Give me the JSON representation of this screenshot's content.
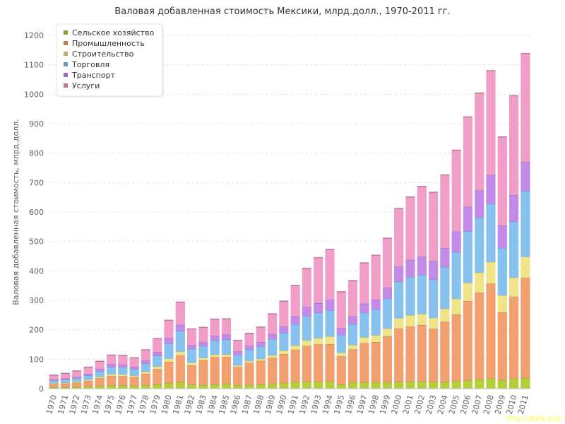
{
  "chart_data": {
    "type": "bar",
    "stacked": true,
    "title": "Валовая добавленная стоимость Мексики, млрд.долл., 1970-2011 гг.",
    "ylabel": "Валовая добавленная стоимость, млрд.долл.",
    "xlabel": "",
    "ylim": [
      0,
      1200
    ],
    "yticks": [
      0,
      100,
      200,
      300,
      400,
      500,
      600,
      700,
      800,
      900,
      1000,
      1100,
      1200
    ],
    "grid": true,
    "legend_position": "top-left",
    "categories": [
      "1970",
      "1971",
      "1972",
      "1973",
      "1974",
      "1975",
      "1976",
      "1977",
      "1978",
      "1979",
      "1980",
      "1981",
      "1982",
      "1983",
      "1984",
      "1985",
      "1986",
      "1987",
      "1988",
      "1989",
      "1990",
      "1991",
      "1992",
      "1993",
      "1994",
      "1995",
      "1996",
      "1997",
      "1998",
      "1999",
      "2000",
      "2001",
      "2002",
      "2003",
      "2004",
      "2005",
      "2006",
      "2007",
      "2008",
      "2009",
      "2010",
      "2011"
    ],
    "series": [
      {
        "name": "Сельское хозяйство",
        "color": "#b5cf3a",
        "values": [
          5,
          5,
          6,
          7,
          9,
          11,
          11,
          10,
          12,
          15,
          19,
          23,
          14,
          13,
          15,
          17,
          13,
          13,
          15,
          17,
          20,
          23,
          24,
          24,
          25,
          15,
          22,
          22,
          22,
          22,
          23,
          24,
          24,
          23,
          23,
          26,
          29,
          32,
          35,
          29,
          34,
          37
        ]
      },
      {
        "name": "Промышленность",
        "color": "#f2a070",
        "values": [
          11,
          13,
          15,
          20,
          27,
          33,
          32,
          30,
          39,
          52,
          73,
          90,
          66,
          84,
          92,
          91,
          61,
          75,
          80,
          88,
          98,
          110,
          122,
          127,
          127,
          95,
          112,
          133,
          137,
          156,
          182,
          188,
          193,
          181,
          205,
          227,
          269,
          295,
          322,
          231,
          279,
          340
        ]
      },
      {
        "name": "Строительство",
        "color": "#f0e488",
        "values": [
          3,
          3,
          4,
          4,
          5,
          6,
          6,
          5,
          7,
          9,
          11,
          14,
          9,
          8,
          9,
          9,
          6,
          7,
          7,
          9,
          12,
          14,
          19,
          21,
          26,
          13,
          15,
          20,
          23,
          27,
          35,
          38,
          37,
          37,
          44,
          53,
          62,
          68,
          74,
          58,
          65,
          72
        ]
      },
      {
        "name": "Торговля",
        "color": "#87c2ee",
        "values": [
          9,
          10,
          11,
          14,
          19,
          24,
          24,
          22,
          28,
          36,
          51,
          69,
          46,
          40,
          49,
          50,
          35,
          38,
          42,
          55,
          60,
          72,
          82,
          87,
          89,
          60,
          70,
          83,
          88,
          101,
          124,
          130,
          133,
          130,
          142,
          158,
          175,
          187,
          197,
          160,
          190,
          222
        ]
      },
      {
        "name": "Транспорт",
        "color": "#c48aea",
        "values": [
          4,
          4,
          5,
          6,
          8,
          9,
          9,
          8,
          10,
          13,
          18,
          21,
          14,
          13,
          15,
          17,
          12,
          13,
          15,
          17,
          22,
          27,
          31,
          32,
          35,
          23,
          27,
          31,
          33,
          38,
          51,
          58,
          62,
          63,
          64,
          70,
          83,
          92,
          99,
          77,
          90,
          100
        ]
      },
      {
        "name": "Услуги",
        "color": "#f09dc8",
        "values": [
          14,
          17,
          19,
          22,
          25,
          31,
          31,
          30,
          36,
          45,
          60,
          77,
          54,
          50,
          56,
          53,
          37,
          42,
          50,
          68,
          85,
          105,
          131,
          154,
          171,
          123,
          121,
          138,
          150,
          167,
          197,
          213,
          238,
          233,
          248,
          276,
          305,
          330,
          353,
          300,
          337,
          367
        ]
      }
    ]
  },
  "watermark": "http://be5.biz/"
}
